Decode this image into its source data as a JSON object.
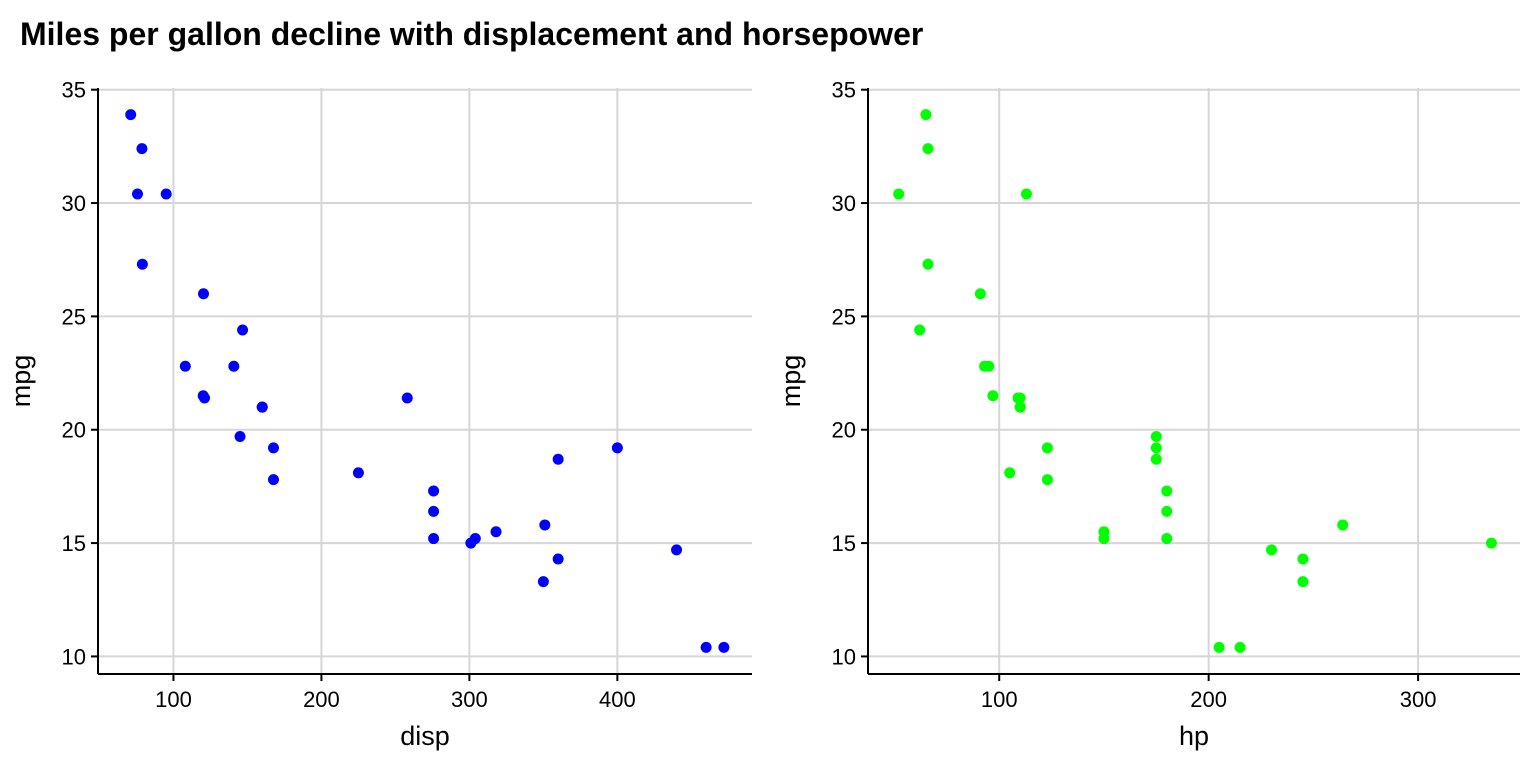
{
  "title": "Miles per gallon decline with displacement and horsepower",
  "chart_data": [
    {
      "type": "scatter",
      "xlabel": "disp",
      "ylabel": "mpg",
      "color": "#0000ff",
      "grid": true,
      "xlim": [
        49,
        491
      ],
      "ylim": [
        9.225,
        35.075
      ],
      "xticks": [
        100,
        200,
        300,
        400
      ],
      "yticks": [
        10,
        15,
        20,
        25,
        30,
        35
      ],
      "x": [
        160,
        160,
        108,
        258,
        360,
        225,
        360,
        146.7,
        140.8,
        167.6,
        167.6,
        275.8,
        275.8,
        275.8,
        472,
        460,
        440,
        78.7,
        75.7,
        71.1,
        120.1,
        318,
        304,
        350,
        400,
        79,
        120.3,
        95.1,
        351,
        145,
        301,
        121
      ],
      "y": [
        21,
        21,
        22.8,
        21.4,
        18.7,
        18.1,
        14.3,
        24.4,
        22.8,
        19.2,
        17.8,
        16.4,
        17.3,
        15.2,
        10.4,
        10.4,
        14.7,
        32.4,
        30.4,
        33.9,
        21.5,
        15.5,
        15.2,
        13.3,
        19.2,
        27.3,
        26,
        30.4,
        15.8,
        19.7,
        15,
        21.4
      ]
    },
    {
      "type": "scatter",
      "xlabel": "hp",
      "ylabel": "mpg",
      "color": "#00ff00",
      "grid": true,
      "xlim": [
        37.35,
        348.65
      ],
      "ylim": [
        9.225,
        35.075
      ],
      "xticks": [
        100,
        200,
        300
      ],
      "yticks": [
        10,
        15,
        20,
        25,
        30,
        35
      ],
      "x": [
        110,
        110,
        93,
        110,
        175,
        105,
        245,
        62,
        95,
        123,
        123,
        180,
        180,
        180,
        205,
        215,
        230,
        66,
        52,
        65,
        97,
        150,
        150,
        245,
        175,
        66,
        91,
        113,
        264,
        175,
        335,
        109
      ],
      "y": [
        21,
        21,
        22.8,
        21.4,
        18.7,
        18.1,
        14.3,
        24.4,
        22.8,
        19.2,
        17.8,
        16.4,
        17.3,
        15.2,
        10.4,
        10.4,
        14.7,
        32.4,
        30.4,
        33.9,
        21.5,
        15.5,
        15.2,
        13.3,
        19.2,
        27.3,
        26,
        30.4,
        15.8,
        19.7,
        15,
        21.4
      ]
    }
  ]
}
